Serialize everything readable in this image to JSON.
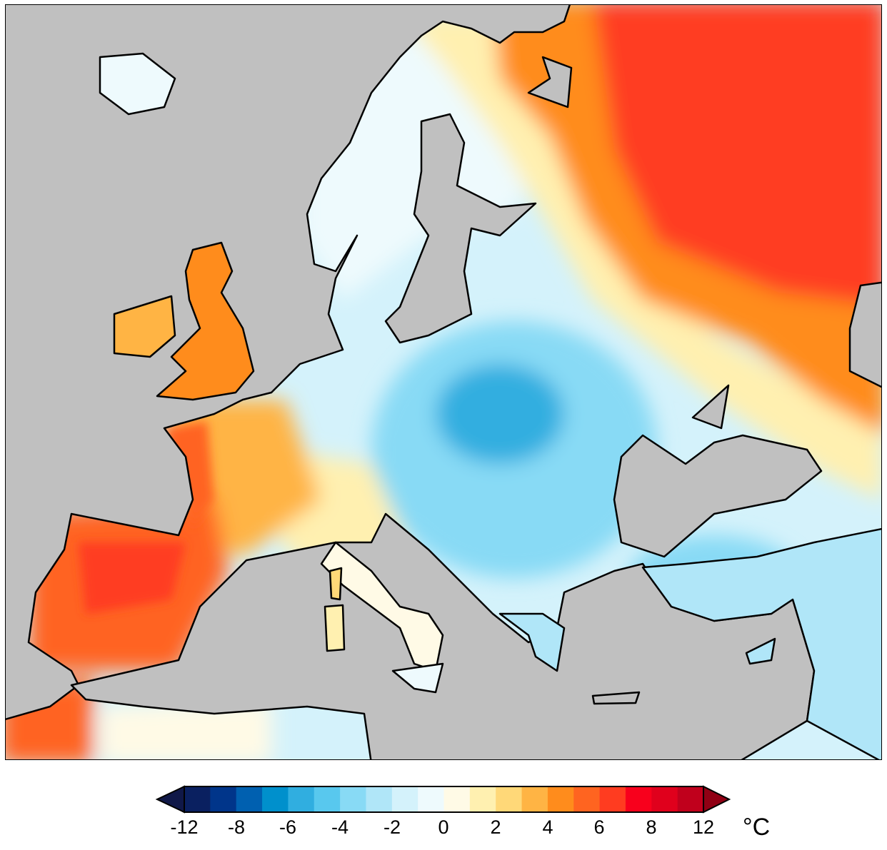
{
  "map": {
    "sea_color": "#c0c0c0",
    "coastline_color": "#000000"
  },
  "colorbar": {
    "unit": "°C",
    "tick_labels": [
      "-12",
      "-8",
      "-6",
      "-4",
      "-2",
      "0",
      "2",
      "4",
      "6",
      "8",
      "12"
    ],
    "extend": "both",
    "under_color": "#101848",
    "over_color": "#900014",
    "colors": [
      "#0a2060",
      "#00358a",
      "#0060b0",
      "#0090cc",
      "#30aee0",
      "#58c8ee",
      "#88daf5",
      "#b0e6f8",
      "#d4f2fb",
      "#eefafd",
      "#fffae6",
      "#fff0b0",
      "#ffd878",
      "#ffb444",
      "#ff8c1c",
      "#ff6420",
      "#ff3c20",
      "#f8001c",
      "#e0001c",
      "#c0001c"
    ]
  }
}
